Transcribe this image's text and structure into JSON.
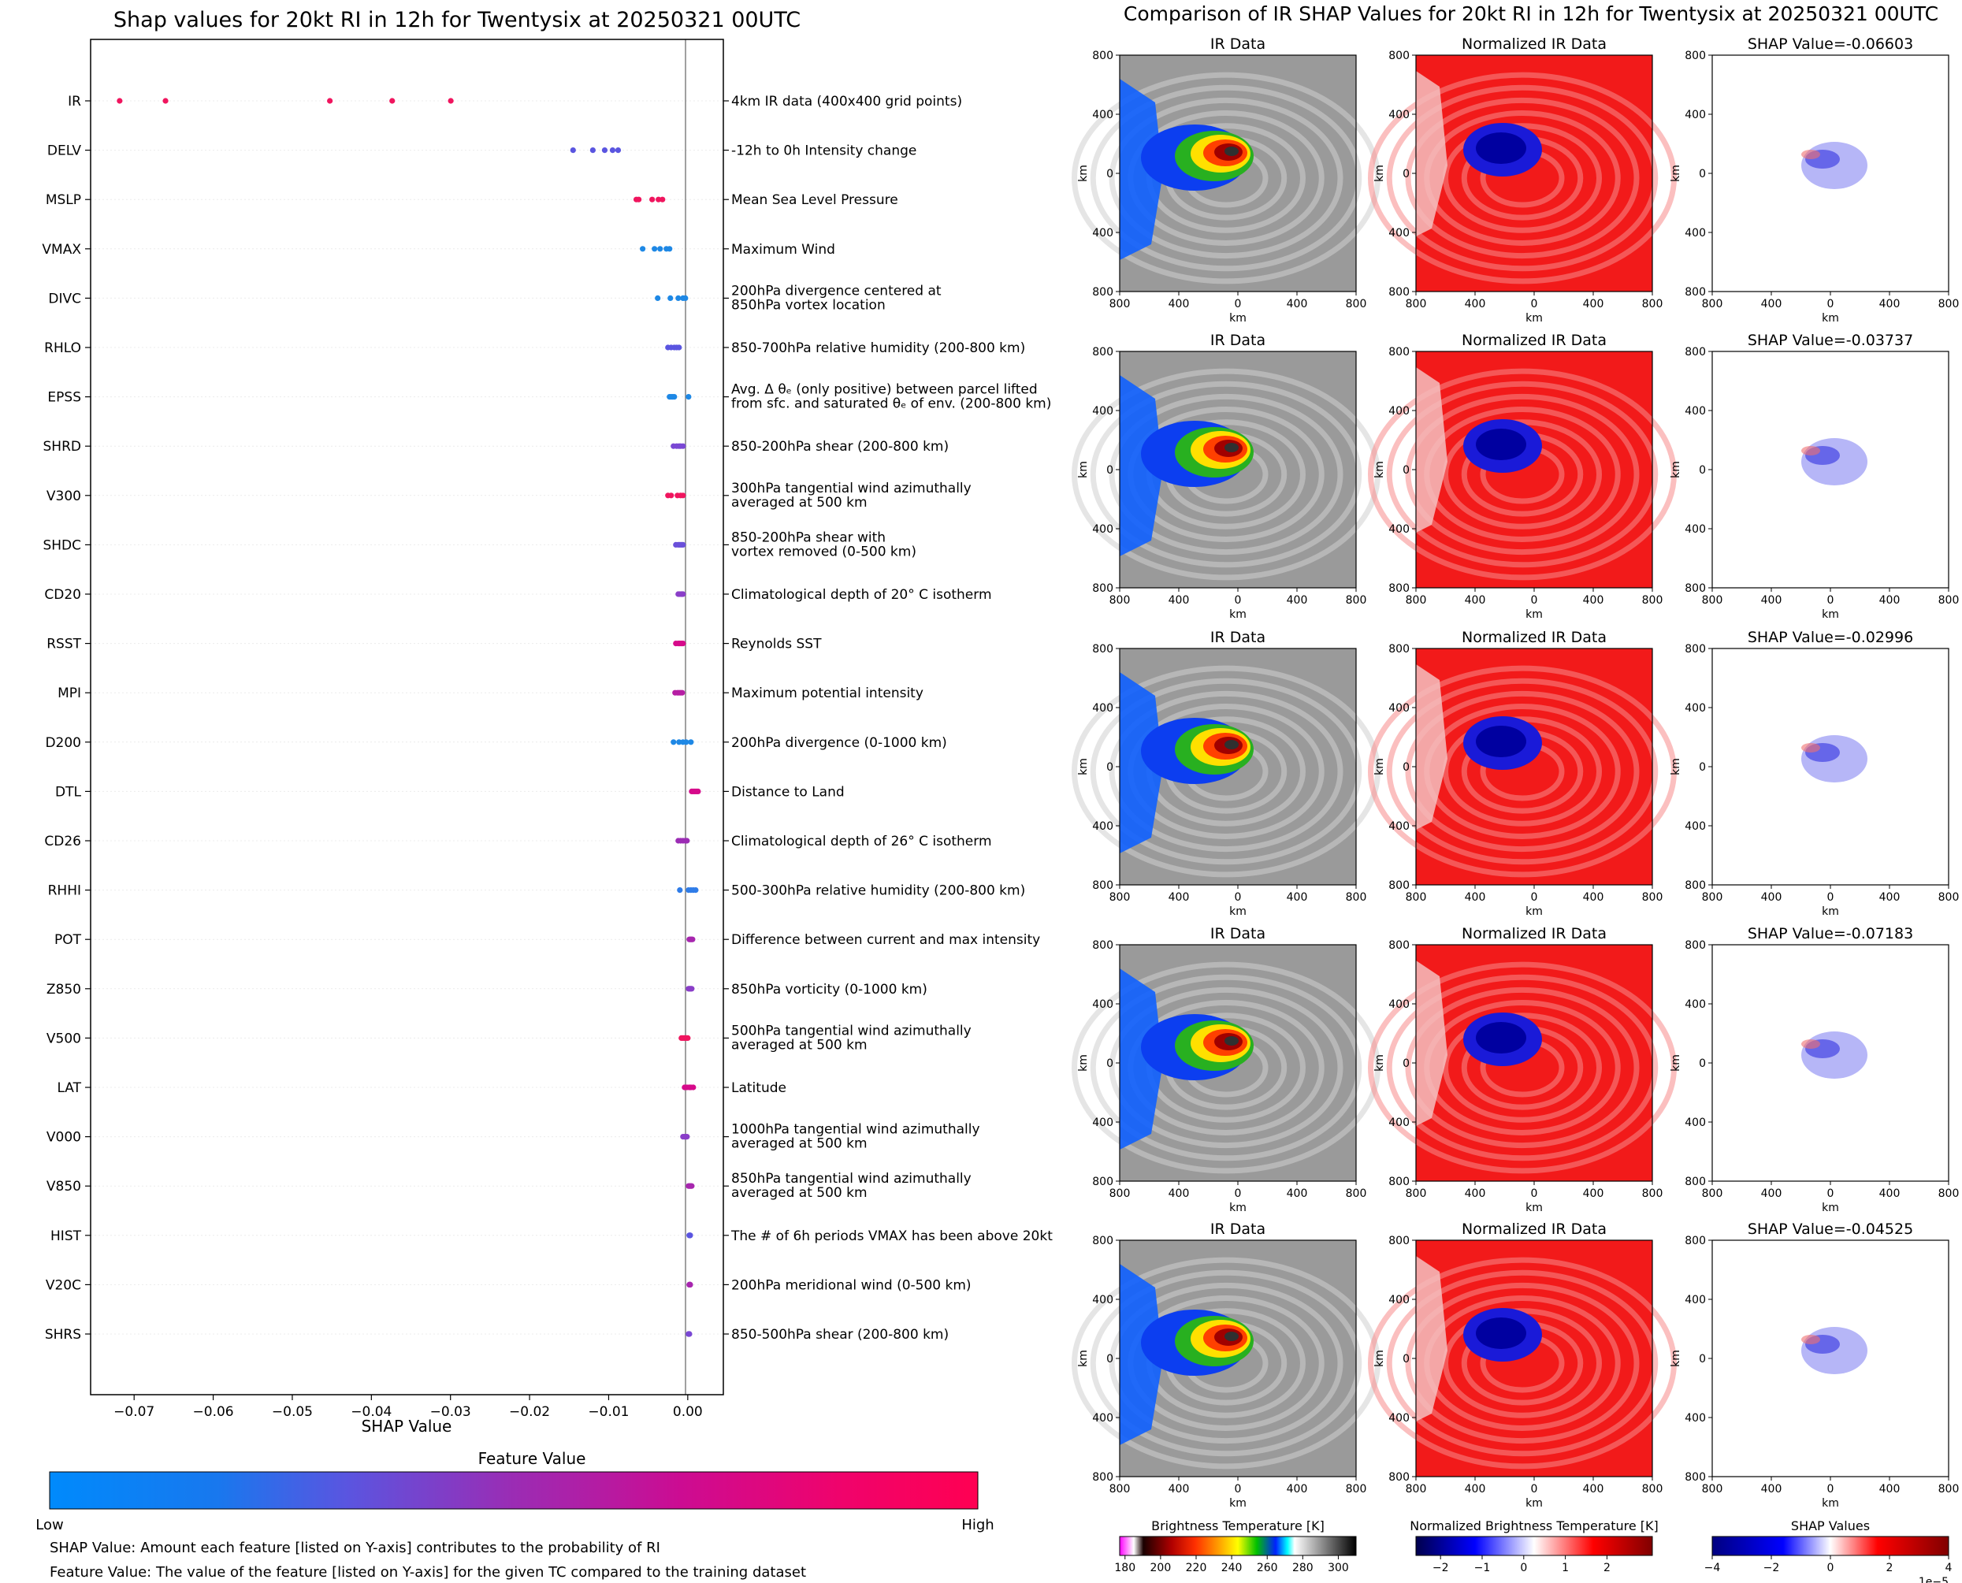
{
  "left": {
    "title": "Shap values for 20kt RI in 12h for Twentysix at 20250321 00UTC",
    "xlabel": "SHAP Value",
    "colorbar": {
      "title": "Feature Value",
      "low": "Low",
      "high": "High",
      "colors": [
        "#1e88e5",
        "#5a55e0",
        "#9b2cb4",
        "#d60a8a",
        "#ff0052"
      ]
    },
    "notes": [
      "SHAP Value: Amount each feature [listed on Y-axis] contributes to the probability of RI",
      "Feature Value: The value of the feature [listed on Y-axis] for the given TC compared to the training dataset"
    ]
  },
  "chart_data": {
    "type": "scatter",
    "title": "Shap values for 20kt RI in 12h for Twentysix at 20250321 00UTC",
    "xlabel": "SHAP Value",
    "xlim": [
      -0.0755,
      0.0045
    ],
    "xticks": [
      -0.07,
      -0.06,
      -0.05,
      -0.04,
      -0.03,
      -0.02,
      -0.01,
      0.0
    ],
    "xtick_labels": [
      "−0.07",
      "−0.06",
      "−0.05",
      "−0.04",
      "−0.03",
      "−0.02",
      "−0.01",
      "0.00"
    ],
    "features": [
      {
        "name": "IR",
        "desc": [
          "4km IR data (400x400 grid points)"
        ],
        "color": "#f0155e",
        "values": [
          -0.07183,
          -0.06603,
          -0.04525,
          -0.03737,
          -0.02996
        ]
      },
      {
        "name": "DELV",
        "desc": [
          "-12h to 0h Intensity change"
        ],
        "color": "#5a55e0",
        "values": [
          -0.0145,
          -0.012,
          -0.0105,
          -0.0095,
          -0.0088
        ]
      },
      {
        "name": "MSLP",
        "desc": [
          "Mean Sea Level Pressure"
        ],
        "color": "#f0155e",
        "values": [
          -0.0065,
          -0.0062,
          -0.0045,
          -0.0037,
          -0.0032
        ]
      },
      {
        "name": "VMAX",
        "desc": [
          "Maximum Wind"
        ],
        "color": "#1e88e5",
        "values": [
          -0.0057,
          -0.0042,
          -0.0035,
          -0.0027,
          -0.0023
        ]
      },
      {
        "name": "DIVC",
        "desc": [
          "200hPa divergence centered at",
          "850hPa vortex location"
        ],
        "color": "#1e88e5",
        "values": [
          -0.0038,
          -0.0022,
          -0.0012,
          -0.0006,
          -0.0003
        ]
      },
      {
        "name": "RHLO",
        "desc": [
          "850-700hPa relative humidity (200-800 km)"
        ],
        "color": "#5a55e0",
        "values": [
          -0.0025,
          -0.0021,
          -0.0017,
          -0.0014,
          -0.0011
        ]
      },
      {
        "name": "EPSS",
        "desc": [
          "Avg. Δ θₑ (only positive) between parcel lifted",
          "from sfc. and saturated θₑ of env. (200-800 km)"
        ],
        "color": "#1e88e5",
        "values": [
          -0.0023,
          -0.0021,
          -0.0019,
          -0.0017,
          0.0001
        ]
      },
      {
        "name": "SHRD",
        "desc": [
          "850-200hPa shear (200-800 km)"
        ],
        "color": "#7a48d4",
        "values": [
          -0.0018,
          -0.0014,
          -0.0011,
          -0.0009,
          -0.0006
        ]
      },
      {
        "name": "V300",
        "desc": [
          "300hPa tangential wind azimuthally",
          "averaged at 500 km"
        ],
        "color": "#f0155e",
        "values": [
          -0.0025,
          -0.0021,
          -0.0013,
          -0.0009,
          -0.0006
        ]
      },
      {
        "name": "SHDC",
        "desc": [
          "850-200hPa shear with",
          "vortex removed (0-500 km)"
        ],
        "color": "#6a50da",
        "values": [
          -0.0015,
          -0.0012,
          -0.001,
          -0.0008,
          -0.0006
        ]
      },
      {
        "name": "CD20",
        "desc": [
          "Climatological depth of 20° C isotherm"
        ],
        "color": "#8a3ec8",
        "values": [
          -0.0012,
          -0.001,
          -0.0008,
          -0.0007,
          -0.0006
        ]
      },
      {
        "name": "RSST",
        "desc": [
          "Reynolds SST"
        ],
        "color": "#d60a8a",
        "values": [
          -0.0015,
          -0.0012,
          -0.001,
          -0.0008,
          -0.0006
        ]
      },
      {
        "name": "MPI",
        "desc": [
          "Maximum potential intensity"
        ],
        "color": "#b61ea4",
        "values": [
          -0.0016,
          -0.0013,
          -0.0011,
          -0.0009,
          -0.0007
        ]
      },
      {
        "name": "D200",
        "desc": [
          "200hPa divergence (0-1000 km)"
        ],
        "color": "#1e88e5",
        "values": [
          -0.0018,
          -0.0011,
          -0.0006,
          -0.0002,
          0.0004
        ]
      },
      {
        "name": "DTL",
        "desc": [
          "Distance to Land"
        ],
        "color": "#d60a8a",
        "values": [
          0.0005,
          0.0007,
          0.0009,
          0.0011,
          0.0013
        ]
      },
      {
        "name": "CD26",
        "desc": [
          "Climatological depth of 26° C isotherm"
        ],
        "color": "#9b2cb4",
        "values": [
          -0.0012,
          -0.0009,
          -0.0006,
          -0.0003,
          -0.0001
        ]
      },
      {
        "name": "RHHI",
        "desc": [
          "500-300hPa relative humidity (200-800 km)"
        ],
        "color": "#2f7ce8",
        "values": [
          -0.001,
          0.0001,
          0.0004,
          0.0007,
          0.001
        ]
      },
      {
        "name": "POT",
        "desc": [
          "Difference between current and max intensity"
        ],
        "color": "#a726ae",
        "values": [
          0.0002,
          0.0003,
          0.0004,
          0.0005,
          0.0006
        ]
      },
      {
        "name": "Z850",
        "desc": [
          "850hPa vorticity (0-1000 km)"
        ],
        "color": "#8a3ec8",
        "values": [
          0.0001,
          0.0002,
          0.0003,
          0.0004,
          0.0005
        ]
      },
      {
        "name": "V500",
        "desc": [
          "500hPa tangential wind azimuthally",
          "averaged at 500 km"
        ],
        "color": "#f0155e",
        "values": [
          -0.0008,
          -0.0006,
          -0.0004,
          -0.0002,
          0.0
        ]
      },
      {
        "name": "LAT",
        "desc": [
          "Latitude"
        ],
        "color": "#d60a8a",
        "values": [
          -0.0004,
          -0.0001,
          0.0002,
          0.0004,
          0.0007
        ]
      },
      {
        "name": "V000",
        "desc": [
          "1000hPa tangential wind azimuthally",
          "averaged at 500 km"
        ],
        "color": "#8a3ec8",
        "values": [
          -0.0006,
          -0.0004,
          -0.0003,
          -0.0002,
          -0.0001
        ]
      },
      {
        "name": "V850",
        "desc": [
          "850hPa tangential wind azimuthally",
          "averaged at 500 km"
        ],
        "color": "#a726ae",
        "values": [
          0.0001,
          0.0002,
          0.0003,
          0.0004,
          0.0005
        ]
      },
      {
        "name": "HIST",
        "desc": [
          "The # of 6h periods VMAX has been above 20kt"
        ],
        "color": "#5a55e0",
        "values": [
          0.0002,
          0.0002,
          0.0003,
          0.0003,
          0.0003
        ]
      },
      {
        "name": "V20C",
        "desc": [
          "200hPa meridional wind (0-500 km)"
        ],
        "color": "#a726ae",
        "values": [
          0.0002,
          0.0002,
          0.0003,
          0.0003,
          0.0003
        ]
      },
      {
        "name": "SHRS",
        "desc": [
          "850-500hPa shear (200-800 km)"
        ],
        "color": "#7a48d4",
        "values": [
          0.0001,
          0.0001,
          0.0002,
          0.0002,
          0.0002
        ]
      }
    ]
  },
  "right": {
    "title": "Comparison of IR SHAP Values for 20kt RI in 12h for Twentysix at 20250321 00UTC",
    "col_titles": [
      "IR Data",
      "Normalized IR Data"
    ],
    "shap_prefix": "SHAP Value=",
    "shap_values": [
      "-0.06603",
      "-0.03737",
      "-0.02996",
      "-0.07183",
      "-0.04525"
    ],
    "axis_label": "km",
    "axis_ticks": [
      "800",
      "400",
      "0",
      "400",
      "800"
    ],
    "colorbars": [
      {
        "title": "Brightness Temperature [K]",
        "ticks": [
          "180",
          "200",
          "220",
          "240",
          "260",
          "280",
          "300"
        ],
        "offset": ""
      },
      {
        "title": "Normalized Brightness Temperature [K]",
        "ticks": [
          "−2",
          "−1",
          "0",
          "1",
          "2"
        ],
        "offset": ""
      },
      {
        "title": "SHAP Values",
        "ticks": [
          "−4",
          "−2",
          "0",
          "2",
          "4"
        ],
        "offset": "1e−5"
      }
    ]
  }
}
